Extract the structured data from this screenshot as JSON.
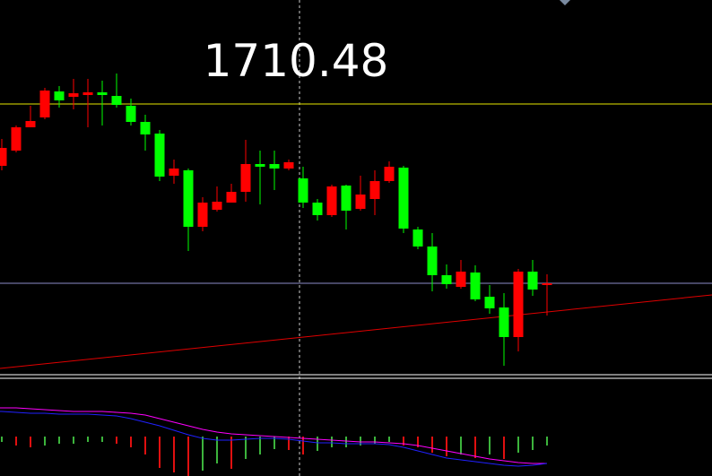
{
  "chart_data": [
    {
      "type": "candlestick",
      "title": "1710.48",
      "ylim": [
        0,
        420
      ],
      "up_color": "#ff0000",
      "down_color": "#00ff00",
      "open": [
        235,
        252,
        278,
        289,
        318,
        312,
        314,
        317,
        313,
        302,
        284,
        271,
        224,
        230,
        167,
        186,
        194,
        206,
        237,
        237,
        232,
        221,
        194,
        180,
        213,
        187,
        198,
        218,
        233,
        164,
        145,
        113,
        100,
        116,
        89,
        77,
        44,
        117,
        102
      ],
      "close": [
        255,
        278,
        285,
        319,
        308,
        316,
        317,
        314,
        303,
        284,
        270,
        223,
        232,
        167,
        194,
        195,
        206,
        237,
        234,
        232,
        239,
        194,
        180,
        212,
        185,
        203,
        218,
        234,
        165,
        145,
        113,
        103,
        117,
        86,
        76,
        44,
        117,
        97,
        104
      ],
      "high": [
        265,
        280,
        302,
        322,
        324,
        332,
        332,
        330,
        338,
        310,
        292,
        275,
        242,
        232,
        200,
        212,
        215,
        264,
        252,
        252,
        242,
        234,
        198,
        214,
        214,
        224,
        230,
        240,
        235,
        167,
        160,
        125,
        130,
        124,
        102,
        93,
        120,
        130,
        114
      ],
      "low": [
        230,
        250,
        278,
        287,
        300,
        298,
        278,
        280,
        300,
        280,
        252,
        218,
        215,
        140,
        162,
        184,
        194,
        195,
        192,
        208,
        230,
        188,
        174,
        178,
        164,
        185,
        180,
        216,
        160,
        142,
        95,
        98,
        98,
        84,
        70,
        12,
        28,
        90,
        68
      ],
      "hlines": [
        {
          "value": 304,
          "color": "#e6e600"
        },
        {
          "value": 104,
          "color": "#8c8cc8"
        }
      ],
      "trendline": {
        "values": [
          9,
          91
        ],
        "color": "#e00000"
      }
    },
    {
      "type": "macd",
      "ylim": [
        -44,
        64
      ],
      "up_color": "#3cb43c",
      "down_color": "#e01010",
      "histogram": [
        -6,
        -10,
        -12,
        -10,
        -8,
        -8,
        -6,
        -6,
        -8,
        -12,
        -20,
        -35,
        -40,
        -44,
        -38,
        -30,
        -36,
        -25,
        -20,
        -14,
        -15,
        -20,
        -16,
        -12,
        -12,
        -10,
        -8,
        -6,
        -10,
        -12,
        -18,
        -22,
        -20,
        -24,
        -20,
        -25,
        -18,
        -15,
        -10
      ],
      "series": [
        {
          "color": "#ff00ff",
          "values": [
            32,
            32,
            31,
            30,
            29,
            28,
            28,
            28,
            27,
            26,
            24,
            20,
            16,
            12,
            8,
            5,
            3,
            2,
            1,
            0,
            -1,
            -2,
            -3,
            -4,
            -5,
            -6,
            -6,
            -7,
            -8,
            -10,
            -13,
            -16,
            -19,
            -22,
            -25,
            -27,
            -29,
            -30,
            -30
          ]
        },
        {
          "color": "#2020ff",
          "values": [
            28,
            27,
            26,
            26,
            25,
            25,
            25,
            24,
            23,
            20,
            16,
            12,
            7,
            2,
            -2,
            -4,
            -4,
            -3,
            -2,
            -2,
            -3,
            -5,
            -7,
            -7,
            -8,
            -8,
            -8,
            -9,
            -12,
            -16,
            -20,
            -24,
            -26,
            -28,
            -30,
            -32,
            -33,
            -32,
            -30
          ]
        }
      ]
    }
  ]
}
